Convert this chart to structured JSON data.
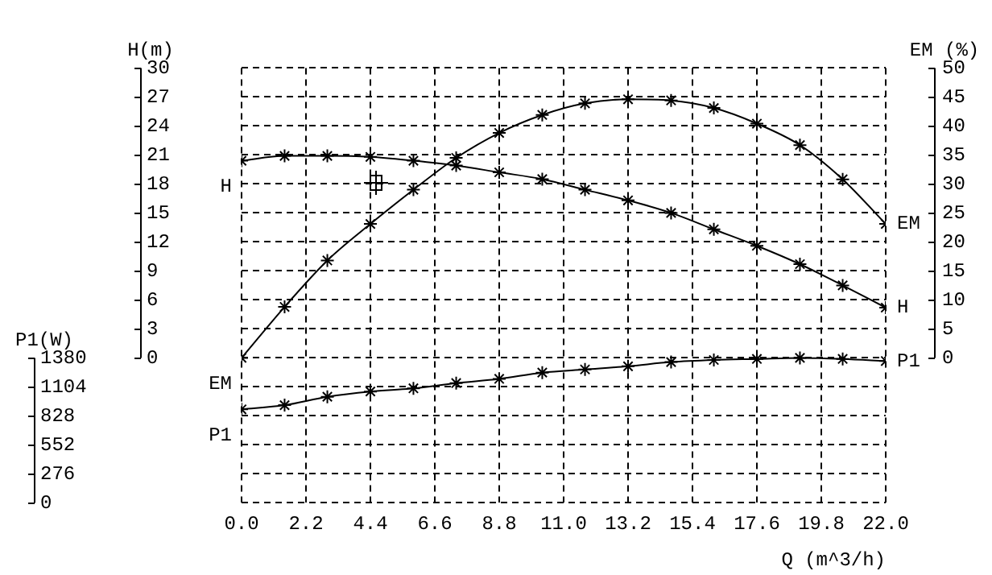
{
  "chart_data": {
    "type": "line",
    "xlabel": "Q (m^3/h)",
    "ylabel": "H(m)",
    "y2label": "EM (%)",
    "y3label": "P1(W)",
    "x": [
      0,
      1.47,
      2.93,
      4.4,
      5.87,
      7.33,
      8.8,
      10.27,
      11.73,
      13.2,
      14.67,
      16.13,
      17.6,
      19.07,
      20.53,
      22
    ],
    "xlim": [
      0,
      22
    ],
    "xticks": [
      {
        "value": 0,
        "label": "0.0"
      },
      2.2,
      4.4,
      6.6,
      8.8,
      {
        "value": 11,
        "label": "11.0"
      },
      13.2,
      15.4,
      17.6,
      19.8,
      {
        "value": 22,
        "label": "22.0"
      }
    ],
    "ylim": [
      -15,
      30
    ],
    "yticks": [
      0,
      3,
      6,
      9,
      12,
      15,
      18,
      21,
      24,
      27,
      30
    ],
    "y2lim": [
      -25,
      50
    ],
    "y2ticks": [
      0,
      5,
      10,
      15,
      20,
      25,
      30,
      35,
      40,
      45,
      50
    ],
    "y3lim": [
      0,
      4140
    ],
    "y3ticks": [
      0,
      276,
      552,
      828,
      1104,
      1380
    ],
    "series": [
      {
        "name": "H",
        "color": "#000000",
        "axis": "y",
        "values": [
          20.4,
          20.9,
          20.9,
          20.8,
          20.4,
          19.9,
          19.2,
          18.5,
          17.4,
          16.3,
          15,
          13.3,
          11.6,
          9.7,
          7.5,
          5.2
        ]
      },
      {
        "name": "EM",
        "color": "#000000",
        "axis": "y2",
        "values": [
          0,
          8.8,
          16.8,
          23.1,
          29,
          34.5,
          38.8,
          41.9,
          43.9,
          44.6,
          44.4,
          43.1,
          40.4,
          36.7,
          30.8,
          23.1
        ]
      },
      {
        "name": "P1",
        "color": "#000000",
        "axis": "y3",
        "values": [
          890,
          930,
          1010,
          1060,
          1090,
          1140,
          1180,
          1240,
          1270,
          1300,
          1340,
          1360,
          1370,
          1380,
          1370,
          1350
        ]
      }
    ],
    "marker": "cross",
    "grid": true,
    "legend": false
  }
}
